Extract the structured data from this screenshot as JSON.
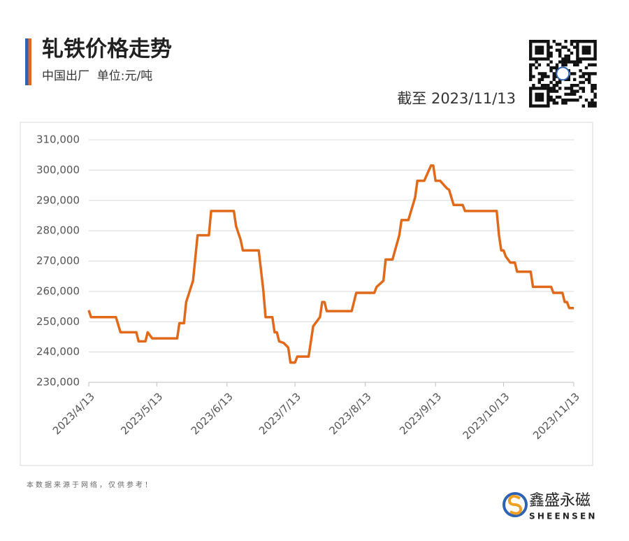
{
  "chart_data": {
    "type": "line",
    "title": "轧铁价格走势",
    "subtitle": "中国出厂  单位:元/吨",
    "as_of": "截至 2023/11/13",
    "x": [
      "2023/4/13",
      "2023/4/14",
      "2023/4/25",
      "2023/4/27",
      "2023/5/4",
      "2023/5/5",
      "2023/5/8",
      "2023/5/9",
      "2023/5/11",
      "2023/5/22",
      "2023/5/23",
      "2023/5/25",
      "2023/5/26",
      "2023/5/29",
      "2023/5/31",
      "2023/6/5",
      "2023/6/6",
      "2023/6/16",
      "2023/6/17",
      "2023/6/19",
      "2023/6/20",
      "2023/6/27",
      "2023/6/29",
      "2023/6/30",
      "2023/7/3",
      "2023/7/4",
      "2023/7/5",
      "2023/7/6",
      "2023/7/8",
      "2023/7/10",
      "2023/7/11",
      "2023/7/13",
      "2023/7/14",
      "2023/7/19",
      "2023/7/21",
      "2023/7/24",
      "2023/7/25",
      "2023/7/26",
      "2023/7/27",
      "2023/8/7",
      "2023/8/9",
      "2023/8/17",
      "2023/8/18",
      "2023/8/21",
      "2023/8/22",
      "2023/8/25",
      "2023/8/28",
      "2023/8/29",
      "2023/9/1",
      "2023/9/4",
      "2023/9/5",
      "2023/9/8",
      "2023/9/11",
      "2023/9/12",
      "2023/9/13",
      "2023/9/15",
      "2023/9/18",
      "2023/9/19",
      "2023/9/21",
      "2023/9/25",
      "2023/9/26",
      "2023/10/10",
      "2023/10/11",
      "2023/10/12",
      "2023/10/13",
      "2023/10/14",
      "2023/10/16",
      "2023/10/18",
      "2023/10/19",
      "2023/10/25",
      "2023/10/26",
      "2023/11/3",
      "2023/11/4",
      "2023/11/8",
      "2023/11/9",
      "2023/11/10",
      "2023/11/11",
      "2023/11/13"
    ],
    "values": [
      253800,
      251500,
      251500,
      246500,
      246500,
      243500,
      243500,
      246500,
      244500,
      244500,
      249500,
      249500,
      256500,
      263500,
      278500,
      278500,
      286500,
      286500,
      281500,
      277000,
      273500,
      273500,
      260500,
      251500,
      251500,
      246500,
      246500,
      243500,
      243000,
      241500,
      236500,
      236500,
      238500,
      238500,
      248500,
      251500,
      256500,
      256500,
      253500,
      253500,
      259500,
      259500,
      261500,
      263500,
      270500,
      270500,
      278500,
      283500,
      283500,
      291000,
      296500,
      296500,
      301500,
      301500,
      296500,
      296500,
      294000,
      293500,
      288500,
      288500,
      286500,
      286500,
      278500,
      273500,
      273500,
      271500,
      269500,
      269500,
      266500,
      266500,
      261500,
      261500,
      259500,
      259500,
      256500,
      256500,
      254500,
      254500
    ],
    "color": "#e06a1a",
    "xlim": [
      "2023/4/13",
      "2023/11/13"
    ],
    "xticks": [
      "2023/4/13",
      "2023/5/13",
      "2023/6/13",
      "2023/7/13",
      "2023/8/13",
      "2023/9/13",
      "2023/10/13",
      "2023/11/13"
    ],
    "ylim": [
      230000,
      310000
    ],
    "yticks": [
      {
        "value": 230000,
        "label": "230,000"
      },
      {
        "value": 240000,
        "label": "240,000"
      },
      {
        "value": 250000,
        "label": "250,000"
      },
      {
        "value": 260000,
        "label": "260,000"
      },
      {
        "value": 270000,
        "label": "270,000"
      },
      {
        "value": 280000,
        "label": "280,000"
      },
      {
        "value": 290000,
        "label": "290,000"
      },
      {
        "value": 300000,
        "label": "300,000"
      },
      {
        "value": 310000,
        "label": "310,000"
      }
    ],
    "grid": true
  },
  "footer": {
    "note": "本数据来源于网络，仅供参考！",
    "brand": "鑫盛永磁",
    "brand_en": "SHEENSEN"
  }
}
